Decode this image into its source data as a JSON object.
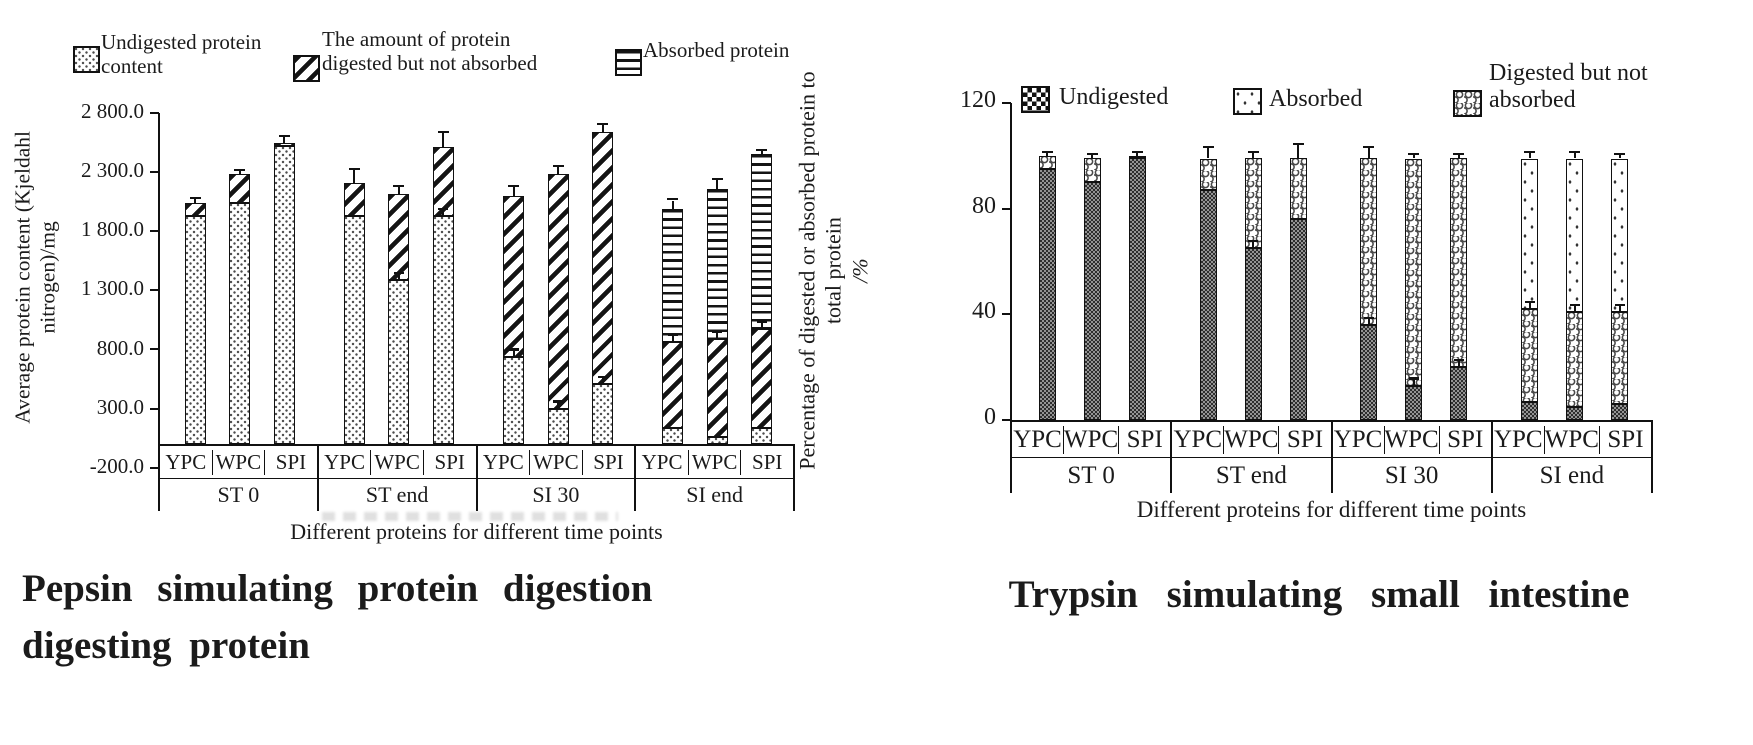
{
  "left_meta": {
    "ylabel_lines": [
      "Average protein content (Kjeldahl",
      "nitrogen)/mg"
    ],
    "ytick_labels": [
      "2 800.0",
      "2 300.0",
      "1 800.0",
      "1 300.0",
      "800.0",
      "300.0",
      "-200.0"
    ],
    "xtitle": "Different proteins for different time points",
    "legend": [
      {
        "pattern": "dots",
        "lines": [
          "Undigested protein",
          "content"
        ]
      },
      {
        "pattern": "hatch",
        "lines": [
          "The amount of protein",
          "digested but not absorbed"
        ]
      },
      {
        "pattern": "hlines",
        "lines": [
          "Absorbed protein"
        ]
      }
    ],
    "caption_line1": "Pepsin simulating protein digestion",
    "caption_line2": "digesting protein"
  },
  "right_meta": {
    "ylabel_lines": [
      "Percentage of digested or absorbed protein to",
      "total protein"
    ],
    "ylabel_unit": "/%",
    "ytick_labels": [
      "120",
      "80",
      "40",
      "0"
    ],
    "xtitle": "Different proteins for different time points",
    "legend": [
      {
        "pattern": "check",
        "lines": [
          "Undigested"
        ]
      },
      {
        "pattern": "sdots",
        "lines": [
          "Absorbed"
        ]
      },
      {
        "pattern": "wavy",
        "lines": [
          "Digested but not",
          "absorbed"
        ]
      }
    ],
    "caption": "Trypsin simulating small intestine"
  },
  "chart_data": [
    {
      "type": "bar",
      "stacked": true,
      "title": "Pepsin simulating protein digestion digesting protein",
      "xlabel": "Different proteins for different time points",
      "ylabel": "Average protein content (Kjeldahl nitrogen)/mg",
      "ylim": [
        -200,
        2800
      ],
      "yticks": [
        2800,
        2300,
        1800,
        1300,
        800,
        300,
        -200
      ],
      "grid": false,
      "legend_position": "top",
      "groups": [
        "ST 0",
        "ST end",
        "SI 30",
        "SI end"
      ],
      "categories": [
        "YPC",
        "WPC",
        "SPI"
      ],
      "series": [
        {
          "name": "Undigested protein content",
          "pattern": "dots",
          "values": [
            1930,
            2040,
            2520,
            1925,
            1385,
            1925,
            740,
            300,
            510,
            135,
            60,
            135
          ]
        },
        {
          "name": "The amount of protein digested but not absorbed",
          "pattern": "hatch",
          "values": [
            105,
            240,
            30,
            285,
            730,
            590,
            1360,
            1985,
            2130,
            730,
            825,
            840
          ]
        },
        {
          "name": "Absorbed protein",
          "pattern": "hlines",
          "values": [
            0,
            0,
            0,
            0,
            0,
            0,
            0,
            0,
            0,
            1125,
            1275,
            1475
          ]
        }
      ],
      "error_top": [
        35,
        30,
        45,
        105,
        60,
        115,
        75,
        60,
        60,
        70,
        75,
        30
      ],
      "mid_err_segment": [
        0,
        0,
        0,
        0,
        1,
        1,
        1,
        1,
        1,
        2,
        2,
        2
      ]
    },
    {
      "type": "bar",
      "stacked": true,
      "title": "Trypsin simulating small intestine",
      "xlabel": "Different proteins for different time points",
      "ylabel": "Percentage of digested or absorbed protein to total protein /%",
      "ylim": [
        0,
        120
      ],
      "yticks": [
        120,
        80,
        40,
        0
      ],
      "grid": false,
      "legend_position": "top",
      "groups": [
        "ST 0",
        "ST end",
        "SI 30",
        "SI end"
      ],
      "categories": [
        "YPC",
        "WPC",
        "SPI"
      ],
      "series": [
        {
          "name": "Undigested",
          "pattern": "check",
          "values": [
            95,
            90,
            99,
            87,
            65,
            76,
            36,
            13,
            20,
            7,
            5,
            6
          ]
        },
        {
          "name": "Digested but not absorbed",
          "pattern": "wavy",
          "values": [
            5,
            9,
            1,
            12,
            34,
            23,
            63,
            86,
            79,
            35,
            36,
            35
          ]
        },
        {
          "name": "Absorbed",
          "pattern": "sdots",
          "values": [
            0,
            0,
            0,
            0,
            0,
            0,
            0,
            0,
            0,
            57,
            58,
            58
          ]
        }
      ],
      "error_top": [
        1,
        1,
        1,
        4,
        2,
        5,
        4,
        1,
        1,
        2,
        2,
        1
      ],
      "mid_err_segment": [
        0,
        0,
        0,
        0,
        1,
        0,
        1,
        1,
        1,
        2,
        2,
        2
      ]
    }
  ]
}
